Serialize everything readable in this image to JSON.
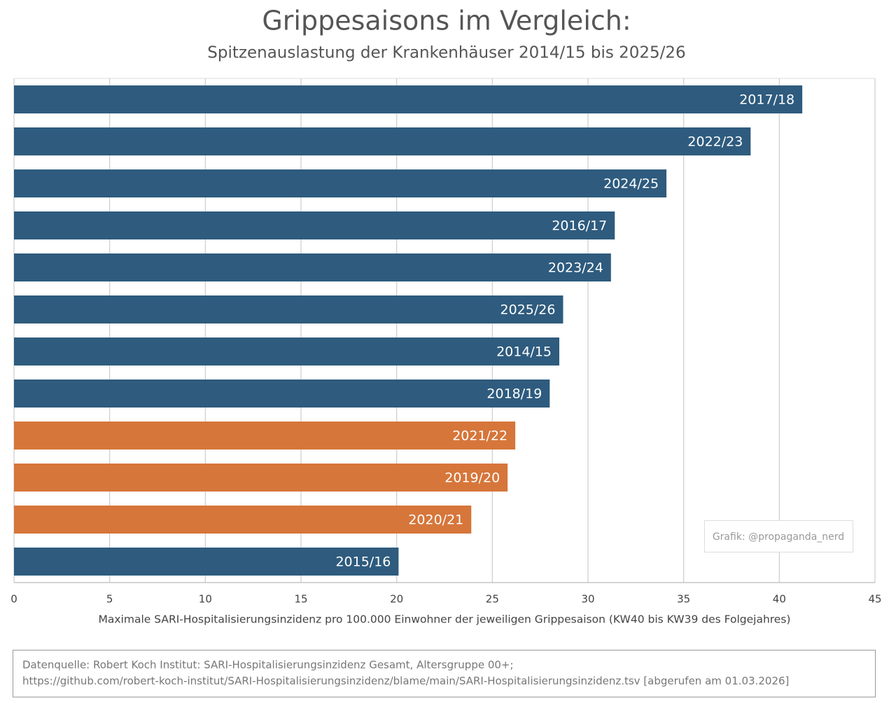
{
  "chart_data": {
    "type": "barh",
    "title": "Grippesaisons im Vergleich:",
    "subtitle": "Spitzenauslastung der Krankenhäuser 2014/15 bis 2025/26",
    "x_label": "Maximale SARI-Hospitalisierungsinzidenz pro 100.000 Einwohner der jeweiligen Grippesaison (KW40 bis KW39 des Folgejahres)",
    "categories": [
      "2017/18",
      "2022/23",
      "2024/25",
      "2016/17",
      "2023/24",
      "2025/26",
      "2014/15",
      "2018/19",
      "2021/22",
      "2019/20",
      "2020/21",
      "2015/16"
    ],
    "values": [
      41.2,
      38.5,
      34.1,
      31.4,
      31.2,
      28.7,
      28.5,
      28.0,
      26.2,
      25.8,
      23.9,
      20.1
    ],
    "colors": [
      "#2e5b7e",
      "#2e5b7e",
      "#2e5b7e",
      "#2e5b7e",
      "#2e5b7e",
      "#2e5b7e",
      "#2e5b7e",
      "#2e5b7e",
      "#d6763a",
      "#d6763a",
      "#d6763a",
      "#2e5b7e"
    ],
    "xlim": [
      0,
      45
    ],
    "xticks": [
      0,
      5,
      10,
      15,
      20,
      25,
      30,
      35,
      40,
      45
    ],
    "grid": true,
    "annotation": "Grafik: @propaganda_nerd",
    "source": [
      "Datenquelle: Robert Koch Institut: SARI-Hospitalisierungsinzidenz Gesamt, Altersgruppe 00+;",
      "https://github.com/robert-koch-institut/SARI-Hospitalisierungsinzidenz/blame/main/SARI-Hospitalisierungsinzidenz.tsv  [abgerufen am 01.03.2026]"
    ]
  }
}
